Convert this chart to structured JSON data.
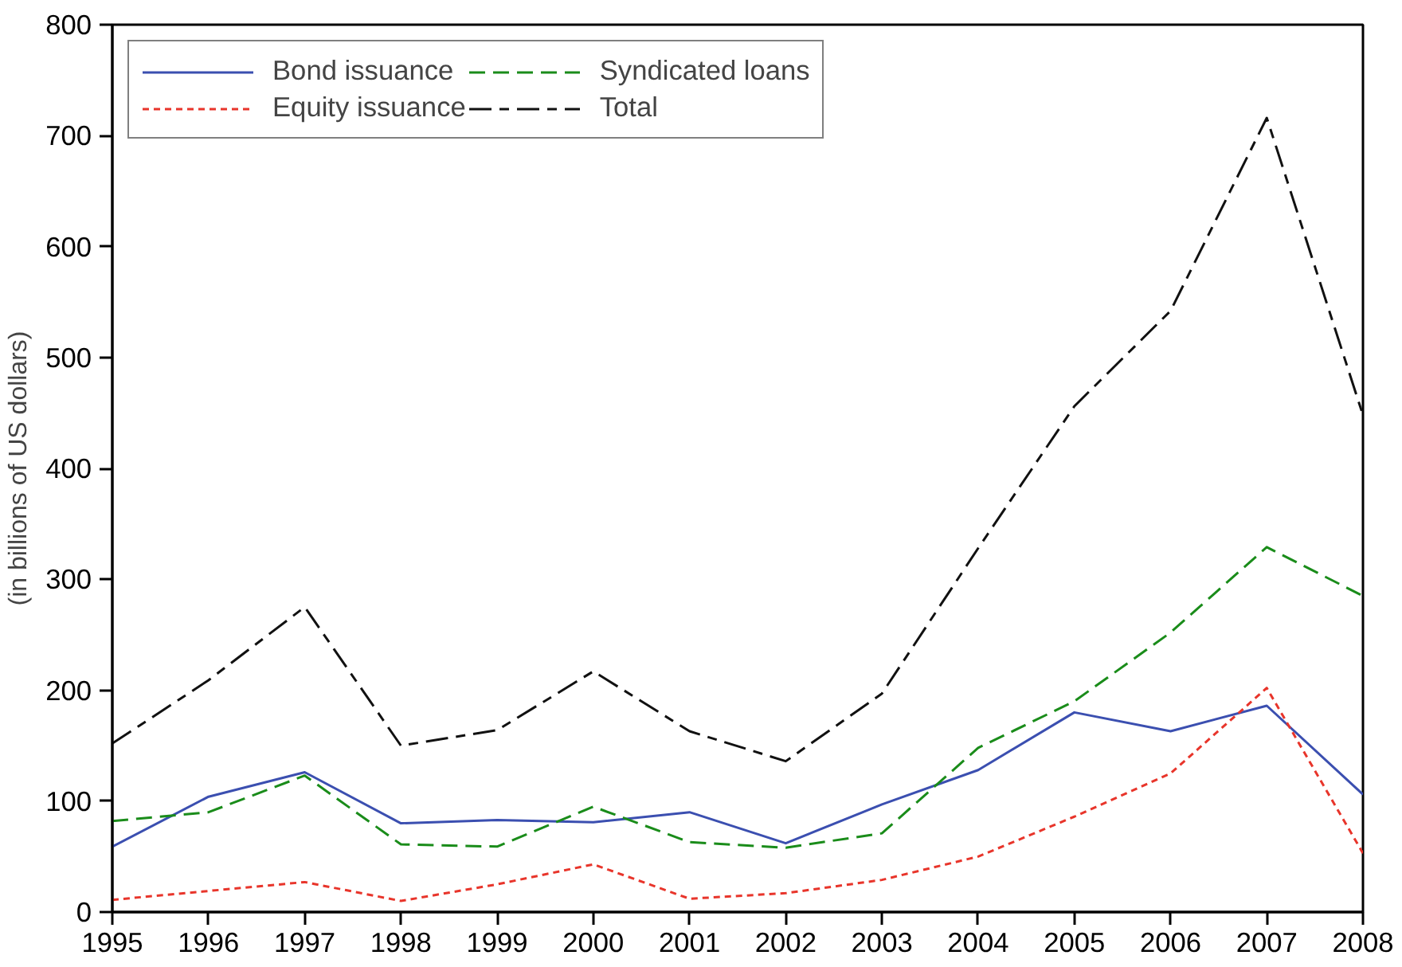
{
  "chart_data": {
    "type": "line",
    "ylabel": "(in billions of US dollars)",
    "x": [
      1995,
      1996,
      1997,
      1998,
      1999,
      2000,
      2001,
      2002,
      2003,
      2004,
      2005,
      2006,
      2007,
      2008
    ],
    "series": [
      {
        "name": "Bond issuance",
        "color": "#3b4fb0",
        "line_style": "solid",
        "values": [
          59,
          104,
          126,
          80,
          83,
          81,
          90,
          62,
          97,
          128,
          180,
          163,
          186,
          106
        ]
      },
      {
        "name": "Equity issuance",
        "color": "#e8352b",
        "line_style": "dashed",
        "values": [
          11,
          19,
          27,
          10,
          25,
          43,
          12,
          17,
          29,
          50,
          86,
          125,
          202,
          53
        ]
      },
      {
        "name": "Syndicated loans",
        "color": "#1a8c1a",
        "line_style": "dashed",
        "values": [
          82,
          90,
          123,
          61,
          59,
          95,
          63,
          58,
          71,
          148,
          190,
          252,
          329,
          285
        ]
      },
      {
        "name": "Total",
        "color": "#111111",
        "line_style": "dashed",
        "values": [
          152,
          209,
          275,
          150,
          164,
          217,
          163,
          136,
          197,
          328,
          456,
          542,
          716,
          448
        ]
      }
    ],
    "xlim": [
      1995,
      2008
    ],
    "ylim": [
      0,
      800
    ],
    "xticks": [
      1995,
      1996,
      1997,
      1998,
      1999,
      2000,
      2001,
      2002,
      2003,
      2004,
      2005,
      2006,
      2007,
      2008
    ],
    "yticks": [
      0,
      100,
      200,
      300,
      400,
      500,
      600,
      700,
      800
    ],
    "grid": false,
    "legend": "top left",
    "marker": "none"
  }
}
